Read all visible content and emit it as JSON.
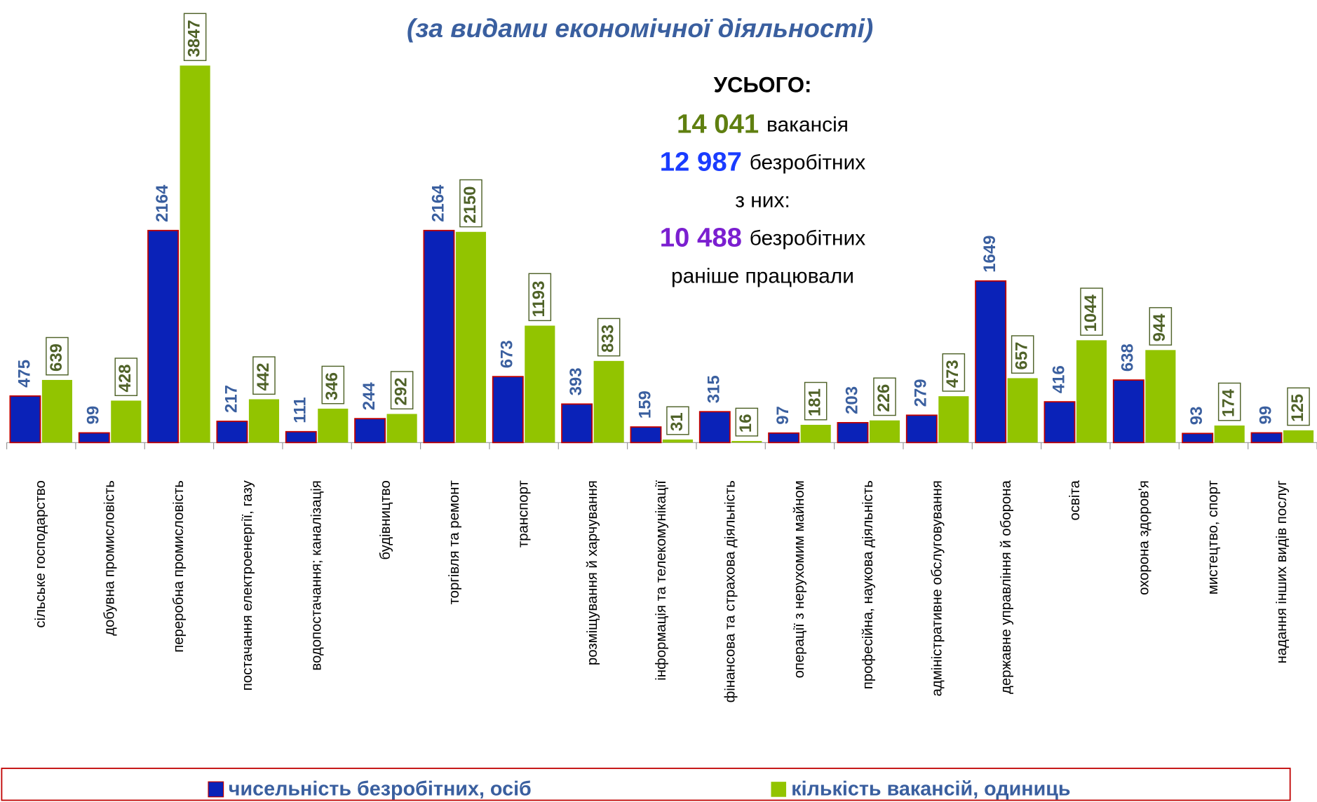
{
  "chart_data": {
    "type": "bar",
    "subtitle": "(за видами економічної діяльності)",
    "summary": {
      "heading": "УСЬОГО:",
      "lines": [
        {
          "number": "14 041",
          "text": "вакансія",
          "color": "#5f7f10"
        },
        {
          "number": "12 987",
          "text": "безробітних",
          "color": "#1a3cff"
        },
        {
          "text": "з них:"
        },
        {
          "number": "10 488",
          "text": "безробітних",
          "color": "#7b1fd0"
        },
        {
          "text": "раніше працювали"
        }
      ]
    },
    "categories": [
      "сільське господарство",
      "добувна промисловість",
      "переробна промисловість",
      "постачання електроенергії, газу",
      "водопостачання; каналізація",
      "будівництво",
      "торгівля та ремонт",
      "транспорт",
      "розміщування й харчування",
      "інформація та телекомунікації",
      "фінансова та страхова діяльність",
      "операції з нерухомим майном",
      "професійна, наукова  діяльність",
      "адміністративне обслуговування",
      "державне управління й оборона",
      "освіта",
      "охорона здоров'я",
      "мистецтво, спорт",
      "надання інших видів послуг"
    ],
    "series": [
      {
        "name": "чисельність безробітних, осіб",
        "color": "#0a22b8",
        "label_color": "#3a5f9f",
        "values": [
          475,
          99,
          2164,
          217,
          111,
          244,
          2164,
          673,
          393,
          159,
          315,
          97,
          203,
          279,
          1649,
          416,
          638,
          93,
          99
        ]
      },
      {
        "name": "кількість вакансій, одиниць",
        "color": "#92c400",
        "label_color": "#4f6228",
        "values": [
          639,
          428,
          3847,
          442,
          346,
          292,
          2150,
          1193,
          833,
          31,
          16,
          181,
          226,
          473,
          657,
          1044,
          944,
          174,
          125
        ]
      }
    ],
    "legend": "bottom"
  }
}
